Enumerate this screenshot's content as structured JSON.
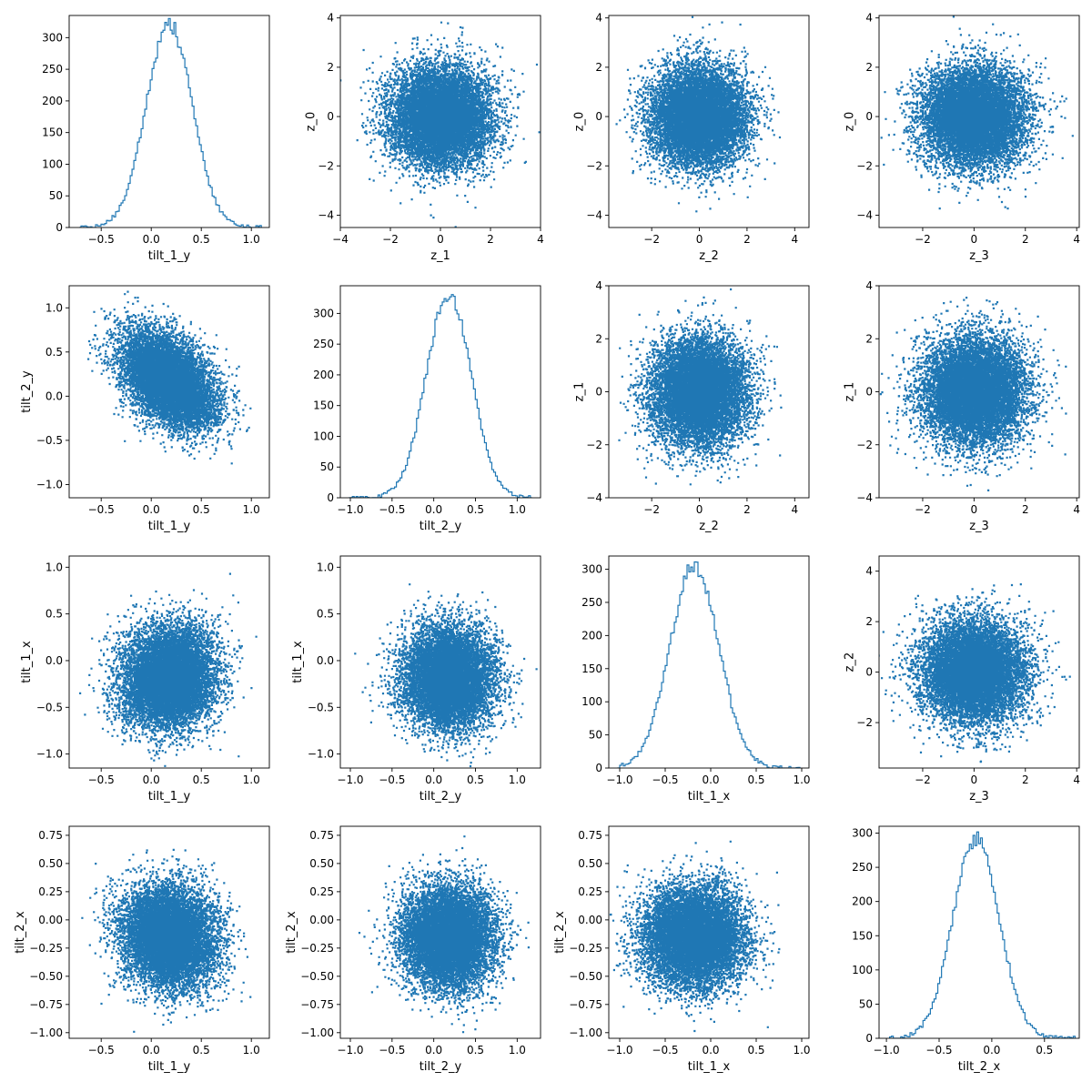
{
  "chart_data": {
    "type": "pairplot-matrix",
    "grid": false,
    "marker_color": "#1f77b4",
    "point_count_per_panel": 10000,
    "panels": [
      {
        "id": "r0c0",
        "type": "histogram",
        "xlabel": "tilt_1_y",
        "ylabel": "",
        "xlim": [
          -0.82,
          1.18
        ],
        "ylim": [
          0,
          335
        ],
        "xticks": [
          -0.5,
          0.0,
          0.5,
          1.0
        ],
        "xticklabels": [
          "−0.5",
          "0.0",
          "0.5",
          "1.0"
        ],
        "yticks": [
          0,
          50,
          100,
          150,
          200,
          250,
          300
        ],
        "yticklabels": [
          "0",
          "50",
          "100",
          "150",
          "200",
          "250",
          "300"
        ],
        "dist": {
          "mean": 0.18,
          "sd": 0.23,
          "peak": 320,
          "min": -0.72,
          "max": 1.1
        }
      },
      {
        "id": "r0c1",
        "type": "scatter",
        "xlabel": "z_1",
        "ylabel": "z_0",
        "xlim": [
          -4.0,
          4.0
        ],
        "ylim": [
          -4.5,
          4.1
        ],
        "xticks": [
          -4,
          -2,
          0,
          2,
          4
        ],
        "xticklabels": [
          "−4",
          "−2",
          "0",
          "2",
          "4"
        ],
        "yticks": [
          -4,
          -2,
          0,
          2,
          4
        ],
        "yticklabels": [
          "−4",
          "−2",
          "0",
          "2",
          "4"
        ],
        "dist": {
          "mx": 0.0,
          "sx": 1.0,
          "my": 0.0,
          "sy": 1.0,
          "rho": 0.0
        }
      },
      {
        "id": "r0c2",
        "type": "scatter",
        "xlabel": "z_2",
        "ylabel": "z_0",
        "xlim": [
          -3.8,
          4.6
        ],
        "ylim": [
          -4.5,
          4.1
        ],
        "xticks": [
          -2,
          0,
          2,
          4
        ],
        "xticklabels": [
          "−2",
          "0",
          "2",
          "4"
        ],
        "yticks": [
          -4,
          -2,
          0,
          2,
          4
        ],
        "yticklabels": [
          "−4",
          "−2",
          "0",
          "2",
          "4"
        ],
        "dist": {
          "mx": 0.0,
          "sx": 1.0,
          "my": 0.0,
          "sy": 1.0,
          "rho": 0.0
        }
      },
      {
        "id": "r0c3",
        "type": "scatter",
        "xlabel": "z_3",
        "ylabel": "z_0",
        "xlim": [
          -3.7,
          4.1
        ],
        "ylim": [
          -4.5,
          4.1
        ],
        "xticks": [
          -2,
          0,
          2,
          4
        ],
        "xticklabels": [
          "−2",
          "0",
          "2",
          "4"
        ],
        "yticks": [
          -4,
          -2,
          0,
          2,
          4
        ],
        "yticklabels": [
          "−4",
          "−2",
          "0",
          "2",
          "4"
        ],
        "dist": {
          "mx": 0.0,
          "sx": 1.0,
          "my": 0.0,
          "sy": 1.0,
          "rho": 0.0
        }
      },
      {
        "id": "r1c0",
        "type": "scatter",
        "xlabel": "tilt_1_y",
        "ylabel": "tilt_2_y",
        "xlim": [
          -0.82,
          1.18
        ],
        "ylim": [
          -1.15,
          1.25
        ],
        "xticks": [
          -0.5,
          0.0,
          0.5,
          1.0
        ],
        "xticklabels": [
          "−0.5",
          "0.0",
          "0.5",
          "1.0"
        ],
        "yticks": [
          -1.0,
          -0.5,
          0.0,
          0.5,
          1.0
        ],
        "yticklabels": [
          "−1.0",
          "−0.5",
          "0.0",
          "0.5",
          "1.0"
        ],
        "dist": {
          "mx": 0.18,
          "sx": 0.23,
          "my": 0.18,
          "sy": 0.27,
          "rho": -0.45
        }
      },
      {
        "id": "r1c1",
        "type": "histogram",
        "xlabel": "tilt_2_y",
        "ylabel": "",
        "xlim": [
          -1.12,
          1.28
        ],
        "ylim": [
          0,
          345
        ],
        "xticks": [
          -1.0,
          -0.5,
          0.0,
          0.5,
          1.0
        ],
        "xticklabels": [
          "−1.0",
          "−0.5",
          "0.0",
          "0.5",
          "1.0"
        ],
        "yticks": [
          0,
          50,
          100,
          150,
          200,
          250,
          300
        ],
        "yticklabels": [
          "0",
          "50",
          "100",
          "150",
          "200",
          "250",
          "300"
        ],
        "dist": {
          "mean": 0.18,
          "sd": 0.27,
          "peak": 330,
          "min": -1.02,
          "max": 1.18
        }
      },
      {
        "id": "r1c2",
        "type": "scatter",
        "xlabel": "z_2",
        "ylabel": "z_1",
        "xlim": [
          -3.8,
          4.6
        ],
        "ylim": [
          -4.0,
          4.0
        ],
        "xticks": [
          -2,
          0,
          2,
          4
        ],
        "xticklabels": [
          "−2",
          "0",
          "2",
          "4"
        ],
        "yticks": [
          -4,
          -2,
          0,
          2,
          4
        ],
        "yticklabels": [
          "−4",
          "−2",
          "0",
          "2",
          "4"
        ],
        "dist": {
          "mx": 0.0,
          "sx": 1.0,
          "my": 0.0,
          "sy": 1.0,
          "rho": 0.0
        }
      },
      {
        "id": "r1c3",
        "type": "scatter",
        "xlabel": "z_3",
        "ylabel": "z_1",
        "xlim": [
          -3.7,
          4.1
        ],
        "ylim": [
          -4.0,
          4.0
        ],
        "xticks": [
          -2,
          0,
          2,
          4
        ],
        "xticklabels": [
          "−2",
          "0",
          "2",
          "4"
        ],
        "yticks": [
          -4,
          -2,
          0,
          2,
          4
        ],
        "yticklabels": [
          "−4",
          "−2",
          "0",
          "2",
          "4"
        ],
        "dist": {
          "mx": 0.0,
          "sx": 1.0,
          "my": 0.0,
          "sy": 1.0,
          "rho": 0.0
        }
      },
      {
        "id": "r2c0",
        "type": "scatter",
        "xlabel": "tilt_1_y",
        "ylabel": "tilt_1_x",
        "xlim": [
          -0.82,
          1.18
        ],
        "ylim": [
          -1.15,
          1.12
        ],
        "xticks": [
          -0.5,
          0.0,
          0.5,
          1.0
        ],
        "xticklabels": [
          "−0.5",
          "0.0",
          "0.5",
          "1.0"
        ],
        "yticks": [
          -1.0,
          -0.5,
          0.0,
          0.5,
          1.0
        ],
        "yticklabels": [
          "−1.0",
          "−0.5",
          "0.0",
          "0.5",
          "1.0"
        ],
        "dist": {
          "mx": 0.18,
          "sx": 0.23,
          "my": -0.18,
          "sy": 0.27,
          "rho": 0.1
        }
      },
      {
        "id": "r2c1",
        "type": "scatter",
        "xlabel": "tilt_2_y",
        "ylabel": "tilt_1_x",
        "xlim": [
          -1.12,
          1.28
        ],
        "ylim": [
          -1.15,
          1.12
        ],
        "xticks": [
          -1.0,
          -0.5,
          0.0,
          0.5,
          1.0
        ],
        "xticklabels": [
          "−1.0",
          "−0.5",
          "0.0",
          "0.5",
          "1.0"
        ],
        "yticks": [
          -1.0,
          -0.5,
          0.0,
          0.5,
          1.0
        ],
        "yticklabels": [
          "−1.0",
          "−0.5",
          "0.0",
          "0.5",
          "1.0"
        ],
        "dist": {
          "mx": 0.18,
          "sx": 0.27,
          "my": -0.18,
          "sy": 0.27,
          "rho": 0.0
        }
      },
      {
        "id": "r2c2",
        "type": "histogram",
        "xlabel": "tilt_1_x",
        "ylabel": "",
        "xlim": [
          -1.12,
          1.08
        ],
        "ylim": [
          0,
          320
        ],
        "xticks": [
          -1.0,
          -0.5,
          0.0,
          0.5,
          1.0
        ],
        "xticklabels": [
          "−1.0",
          "−0.5",
          "0.0",
          "0.5",
          "1.0"
        ],
        "yticks": [
          0,
          50,
          100,
          150,
          200,
          250,
          300
        ],
        "yticklabels": [
          "0",
          "50",
          "100",
          "150",
          "200",
          "250",
          "300"
        ],
        "dist": {
          "mean": -0.18,
          "sd": 0.27,
          "peak": 305,
          "min": -1.02,
          "max": 0.98
        }
      },
      {
        "id": "r2c3",
        "type": "scatter",
        "xlabel": "z_3",
        "ylabel": "z_2",
        "xlim": [
          -3.7,
          4.1
        ],
        "ylim": [
          -3.8,
          4.6
        ],
        "xticks": [
          -2,
          0,
          2,
          4
        ],
        "xticklabels": [
          "−2",
          "0",
          "2",
          "4"
        ],
        "yticks": [
          -2,
          0,
          2,
          4
        ],
        "yticklabels": [
          "−2",
          "0",
          "2",
          "4"
        ],
        "dist": {
          "mx": 0.0,
          "sx": 1.0,
          "my": 0.0,
          "sy": 1.0,
          "rho": 0.0
        }
      },
      {
        "id": "r3c0",
        "type": "scatter",
        "xlabel": "tilt_1_y",
        "ylabel": "tilt_2_x",
        "xlim": [
          -0.82,
          1.18
        ],
        "ylim": [
          -1.05,
          0.83
        ],
        "xticks": [
          -0.5,
          0.0,
          0.5,
          1.0
        ],
        "xticklabels": [
          "−0.5",
          "0.0",
          "0.5",
          "1.0"
        ],
        "yticks": [
          -1.0,
          -0.75,
          -0.5,
          -0.25,
          0.0,
          0.25,
          0.5,
          0.75
        ],
        "yticklabels": [
          "−1.00",
          "−0.75",
          "−0.50",
          "−0.25",
          "0.00",
          "0.25",
          "0.50",
          "0.75"
        ],
        "dist": {
          "mx": 0.18,
          "sx": 0.23,
          "my": -0.15,
          "sy": 0.22,
          "rho": -0.1
        }
      },
      {
        "id": "r3c1",
        "type": "scatter",
        "xlabel": "tilt_2_y",
        "ylabel": "tilt_2_x",
        "xlim": [
          -1.12,
          1.28
        ],
        "ylim": [
          -1.05,
          0.83
        ],
        "xticks": [
          -1.0,
          -0.5,
          0.0,
          0.5,
          1.0
        ],
        "xticklabels": [
          "−1.0",
          "−0.5",
          "0.0",
          "0.5",
          "1.0"
        ],
        "yticks": [
          -1.0,
          -0.75,
          -0.5,
          -0.25,
          0.0,
          0.25,
          0.5,
          0.75
        ],
        "yticklabels": [
          "−1.00",
          "−0.75",
          "−0.50",
          "−0.25",
          "0.00",
          "0.25",
          "0.50",
          "0.75"
        ],
        "dist": {
          "mx": 0.18,
          "sx": 0.27,
          "my": -0.15,
          "sy": 0.22,
          "rho": 0.0
        }
      },
      {
        "id": "r3c2",
        "type": "scatter",
        "xlabel": "tilt_1_x",
        "ylabel": "tilt_2_x",
        "xlim": [
          -1.12,
          1.08
        ],
        "ylim": [
          -1.05,
          0.83
        ],
        "xticks": [
          -1.0,
          -0.5,
          0.0,
          0.5,
          1.0
        ],
        "xticklabels": [
          "−1.0",
          "−0.5",
          "0.0",
          "0.5",
          "1.0"
        ],
        "yticks": [
          -1.0,
          -0.75,
          -0.5,
          -0.25,
          0.0,
          0.25,
          0.5,
          0.75
        ],
        "yticklabels": [
          "−1.00",
          "−0.75",
          "−0.50",
          "−0.25",
          "0.00",
          "0.25",
          "0.50",
          "0.75"
        ],
        "dist": {
          "mx": -0.18,
          "sx": 0.27,
          "my": -0.15,
          "sy": 0.22,
          "rho": 0.0
        }
      },
      {
        "id": "r3c3",
        "type": "histogram",
        "xlabel": "tilt_2_x",
        "ylabel": "",
        "xlim": [
          -1.07,
          0.83
        ],
        "ylim": [
          0,
          310
        ],
        "xticks": [
          -1.0,
          -0.5,
          0.0,
          0.5
        ],
        "xticklabels": [
          "−1.0",
          "−0.5",
          "0.0",
          "0.5"
        ],
        "yticks": [
          0,
          50,
          100,
          150,
          200,
          250,
          300
        ],
        "yticklabels": [
          "0",
          "50",
          "100",
          "150",
          "200",
          "250",
          "300"
        ],
        "dist": {
          "mean": -0.15,
          "sd": 0.22,
          "peak": 292,
          "min": -0.97,
          "max": 0.79
        }
      }
    ]
  }
}
